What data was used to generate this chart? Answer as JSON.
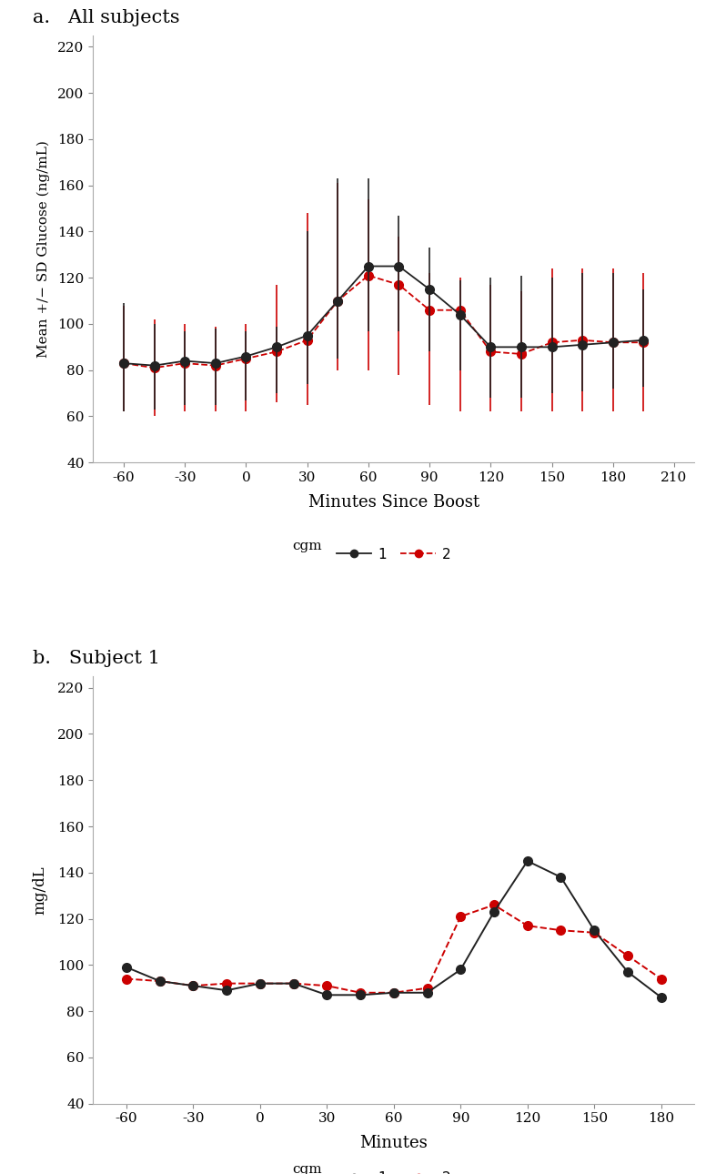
{
  "panel_a": {
    "title": "a.   All subjects",
    "xlabel": "Minutes Since Boost",
    "ylabel": "Mean +/- SD Glucose (ng/mL)",
    "xlim": [
      -75,
      220
    ],
    "ylim": [
      40,
      225
    ],
    "xticks": [
      -60,
      -30,
      0,
      30,
      60,
      90,
      120,
      150,
      180,
      210
    ],
    "yticks": [
      40,
      60,
      80,
      100,
      120,
      140,
      160,
      180,
      200,
      220
    ],
    "series1": {
      "x": [
        -60,
        -45,
        -30,
        -15,
        0,
        15,
        30,
        45,
        60,
        75,
        90,
        105,
        120,
        135,
        150,
        165,
        180,
        195
      ],
      "y": [
        83,
        82,
        84,
        83,
        86,
        90,
        95,
        110,
        125,
        125,
        115,
        104,
        90,
        90,
        90,
        91,
        92,
        93
      ],
      "yerr_lo": [
        21,
        19,
        19,
        18,
        19,
        20,
        21,
        25,
        28,
        28,
        27,
        24,
        22,
        22,
        20,
        20,
        20,
        20
      ],
      "yerr_hi": [
        26,
        18,
        13,
        15,
        11,
        9,
        45,
        53,
        38,
        22,
        18,
        15,
        30,
        31,
        30,
        31,
        30,
        22
      ],
      "color": "#222222",
      "linestyle": "-",
      "marker": "o",
      "markersize": 7
    },
    "series2": {
      "x": [
        -60,
        -45,
        -30,
        -15,
        0,
        15,
        30,
        45,
        60,
        75,
        90,
        105,
        120,
        135,
        150,
        165,
        180,
        195
      ],
      "y": [
        83,
        81,
        83,
        82,
        85,
        88,
        93,
        110,
        121,
        117,
        106,
        106,
        88,
        87,
        92,
        93,
        92,
        92
      ],
      "yerr_lo": [
        21,
        21,
        21,
        20,
        23,
        22,
        28,
        30,
        41,
        39,
        41,
        44,
        26,
        25,
        30,
        31,
        30,
        30
      ],
      "yerr_hi": [
        25,
        21,
        17,
        17,
        15,
        29,
        55,
        51,
        33,
        21,
        16,
        14,
        29,
        27,
        32,
        31,
        32,
        30
      ],
      "color": "#cc0000",
      "linestyle": "--",
      "marker": "o",
      "markersize": 7
    }
  },
  "panel_b": {
    "title": "b.   Subject 1",
    "xlabel": "Minutes",
    "ylabel": "mg/dL",
    "xlim": [
      -75,
      195
    ],
    "ylim": [
      40,
      225
    ],
    "xticks": [
      -60,
      -30,
      0,
      30,
      60,
      90,
      120,
      150,
      180
    ],
    "yticks": [
      40,
      60,
      80,
      100,
      120,
      140,
      160,
      180,
      200,
      220
    ],
    "series1": {
      "x": [
        -60,
        -45,
        -30,
        -15,
        0,
        15,
        30,
        45,
        60,
        75,
        90,
        105,
        120,
        135,
        150,
        165,
        180
      ],
      "y": [
        99,
        93,
        91,
        89,
        92,
        92,
        87,
        87,
        88,
        88,
        98,
        123,
        145,
        138,
        115,
        97,
        86
      ],
      "color": "#222222",
      "linestyle": "-",
      "marker": "o",
      "markersize": 7
    },
    "series2": {
      "x": [
        -60,
        -45,
        -30,
        -15,
        0,
        15,
        30,
        45,
        60,
        75,
        90,
        105,
        120,
        135,
        150,
        165,
        180
      ],
      "y": [
        94,
        93,
        91,
        92,
        92,
        92,
        91,
        88,
        88,
        90,
        121,
        126,
        117,
        115,
        114,
        104,
        94
      ],
      "color": "#cc0000",
      "linestyle": "--",
      "marker": "o",
      "markersize": 7
    }
  },
  "legend_label_cgm": "cgm",
  "legend_label_1": "1",
  "legend_label_2": "2",
  "background_color": "#ffffff",
  "spine_color": "#aaaaaa"
}
